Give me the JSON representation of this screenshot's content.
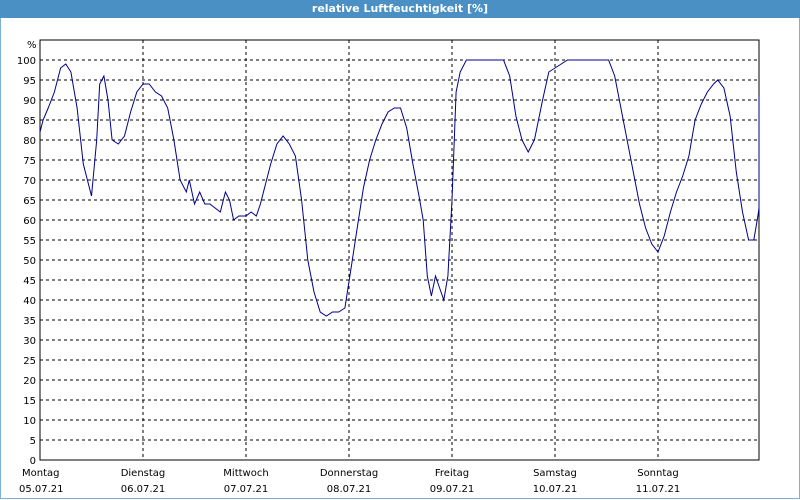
{
  "window": {
    "title": "relative Luftfeuchtigkeit [%]"
  },
  "chart_data": {
    "type": "line",
    "title": "relative Luftfeuchtigkeit [%]",
    "ylabel": "%",
    "xlabel": "",
    "ylim": [
      0,
      100
    ],
    "y_ticks": [
      0,
      5,
      10,
      15,
      20,
      25,
      30,
      35,
      40,
      45,
      50,
      55,
      60,
      65,
      70,
      75,
      80,
      85,
      90,
      95,
      100
    ],
    "xlim_days": [
      0,
      7
    ],
    "x_ticks": [
      {
        "day": "Montag",
        "date": "05.07.21"
      },
      {
        "day": "Dienstag",
        "date": "06.07.21"
      },
      {
        "day": "Mittwoch",
        "date": "07.07.21"
      },
      {
        "day": "Donnerstag",
        "date": "08.07.21"
      },
      {
        "day": "Freitag",
        "date": "09.07.21"
      },
      {
        "day": "Samstag",
        "date": "10.07.21"
      },
      {
        "day": "Sonntag",
        "date": "11.07.21"
      }
    ],
    "grid": true,
    "series": [
      {
        "color": "#00008b",
        "x_unit": "days since 05.07.21 00:00",
        "points": [
          [
            0.0,
            82
          ],
          [
            0.03,
            85
          ],
          [
            0.08,
            88
          ],
          [
            0.14,
            92
          ],
          [
            0.2,
            98
          ],
          [
            0.25,
            99
          ],
          [
            0.3,
            97
          ],
          [
            0.36,
            88
          ],
          [
            0.42,
            74
          ],
          [
            0.5,
            66
          ],
          [
            0.55,
            80
          ],
          [
            0.58,
            94
          ],
          [
            0.62,
            96
          ],
          [
            0.66,
            90
          ],
          [
            0.7,
            80
          ],
          [
            0.76,
            79
          ],
          [
            0.82,
            81
          ],
          [
            0.88,
            87
          ],
          [
            0.94,
            92
          ],
          [
            1.0,
            94
          ],
          [
            1.06,
            94
          ],
          [
            1.12,
            92
          ],
          [
            1.18,
            91
          ],
          [
            1.24,
            88
          ],
          [
            1.3,
            80
          ],
          [
            1.36,
            70
          ],
          [
            1.42,
            67
          ],
          [
            1.45,
            70
          ],
          [
            1.5,
            64
          ],
          [
            1.55,
            67
          ],
          [
            1.6,
            64
          ],
          [
            1.65,
            64
          ],
          [
            1.7,
            63
          ],
          [
            1.75,
            62
          ],
          [
            1.8,
            67
          ],
          [
            1.84,
            65
          ],
          [
            1.88,
            60
          ],
          [
            1.93,
            61
          ],
          [
            2.0,
            61
          ],
          [
            2.05,
            62
          ],
          [
            2.1,
            61
          ],
          [
            2.14,
            64
          ],
          [
            2.18,
            68
          ],
          [
            2.24,
            74
          ],
          [
            2.3,
            79
          ],
          [
            2.36,
            81
          ],
          [
            2.42,
            79
          ],
          [
            2.48,
            76
          ],
          [
            2.54,
            65
          ],
          [
            2.6,
            50
          ],
          [
            2.66,
            42
          ],
          [
            2.72,
            37
          ],
          [
            2.78,
            36
          ],
          [
            2.84,
            37
          ],
          [
            2.9,
            37
          ],
          [
            2.96,
            38
          ],
          [
            3.02,
            48
          ],
          [
            3.08,
            58
          ],
          [
            3.14,
            68
          ],
          [
            3.2,
            75
          ],
          [
            3.26,
            80
          ],
          [
            3.32,
            84
          ],
          [
            3.38,
            87
          ],
          [
            3.44,
            88
          ],
          [
            3.5,
            88
          ],
          [
            3.56,
            83
          ],
          [
            3.62,
            74
          ],
          [
            3.68,
            66
          ],
          [
            3.72,
            60
          ],
          [
            3.76,
            46
          ],
          [
            3.8,
            41
          ],
          [
            3.84,
            46
          ],
          [
            3.88,
            43
          ],
          [
            3.92,
            40
          ],
          [
            3.96,
            46
          ],
          [
            4.0,
            65
          ],
          [
            4.04,
            92
          ],
          [
            4.08,
            97
          ],
          [
            4.14,
            100
          ],
          [
            4.2,
            100
          ],
          [
            4.5,
            100
          ],
          [
            4.56,
            96
          ],
          [
            4.62,
            86
          ],
          [
            4.68,
            80
          ],
          [
            4.74,
            77
          ],
          [
            4.8,
            80
          ],
          [
            4.88,
            90
          ],
          [
            4.94,
            97
          ],
          [
            5.0,
            98
          ],
          [
            5.06,
            99
          ],
          [
            5.12,
            100
          ],
          [
            5.52,
            100
          ],
          [
            5.58,
            96
          ],
          [
            5.64,
            88
          ],
          [
            5.7,
            80
          ],
          [
            5.76,
            72
          ],
          [
            5.82,
            64
          ],
          [
            5.88,
            58
          ],
          [
            5.94,
            54
          ],
          [
            6.0,
            52
          ],
          [
            6.06,
            56
          ],
          [
            6.12,
            62
          ],
          [
            6.18,
            67
          ],
          [
            6.24,
            71
          ],
          [
            6.3,
            76
          ],
          [
            6.36,
            85
          ],
          [
            6.42,
            89
          ],
          [
            6.48,
            92
          ],
          [
            6.54,
            94
          ],
          [
            6.58,
            95
          ],
          [
            6.64,
            93
          ],
          [
            6.7,
            86
          ],
          [
            6.76,
            72
          ],
          [
            6.82,
            62
          ],
          [
            6.88,
            55
          ],
          [
            6.93,
            55
          ],
          [
            6.97,
            61
          ],
          [
            7.03,
            63
          ],
          [
            7.08,
            67
          ],
          [
            7.12,
            66
          ],
          [
            7.16,
            73
          ],
          [
            7.22,
            75
          ],
          [
            7.28,
            79
          ],
          [
            7.34,
            86
          ],
          [
            7.4,
            91
          ]
        ]
      }
    ]
  }
}
